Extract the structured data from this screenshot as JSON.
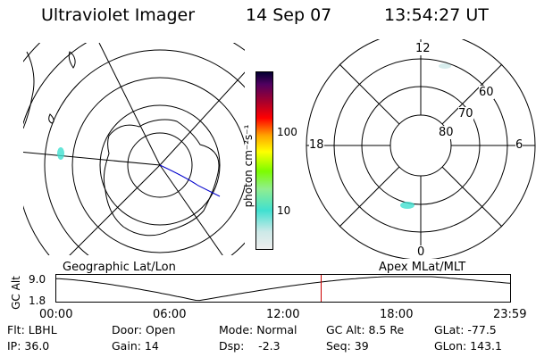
{
  "header": {
    "instrument": "Ultraviolet Imager",
    "date": "14 Sep 07",
    "time": "13:54:27 UT"
  },
  "colorbar": {
    "unit_label": "photon cm⁻²s⁻¹",
    "tick_labels": [
      "100",
      "10"
    ],
    "colors": [
      "#e8e8e8",
      "#bfeee8",
      "#40e0d0",
      "#7cfc00",
      "#ffff00",
      "#ffa500",
      "#ff0000",
      "#b00000",
      "#5a0050",
      "#000030"
    ]
  },
  "geo_map": {
    "label": "Geographic Lat/Lon",
    "ring_color": "#000000",
    "coast_color": "#000000",
    "track_color": "#0000cc"
  },
  "polar_map": {
    "label": "Apex MLat/MLT",
    "mlt_labels": {
      "top": "12",
      "left": "18",
      "right": "6",
      "bottom": "0"
    },
    "mlat_labels": [
      "60",
      "70",
      "80"
    ]
  },
  "altitude_plot": {
    "axis_title": "GC Alt",
    "y_ticks": [
      "9.0",
      "1.8"
    ],
    "x_ticks": [
      "00:00",
      "06:00",
      "12:00",
      "18:00",
      "23:59"
    ],
    "current_time_marker": 14.0,
    "marker_color": "#cc0000"
  },
  "status": {
    "row1": [
      {
        "key": "flt",
        "text": "Flt: LBHL"
      },
      {
        "key": "door",
        "text": "Door: Open"
      },
      {
        "key": "mode",
        "text": "Mode: Normal"
      },
      {
        "key": "gcalt",
        "text": "GC Alt: 8.5 Re"
      },
      {
        "key": "glat",
        "text": "GLat: -77.5"
      }
    ],
    "row2": [
      {
        "key": "ip",
        "text": "IP: 36.0"
      },
      {
        "key": "gain",
        "text": "Gain: 14"
      },
      {
        "key": "dsp",
        "text": "Dsp:    -2.3"
      },
      {
        "key": "seq",
        "text": "Seq: 39"
      },
      {
        "key": "glon",
        "text": "GLon: 143.1"
      }
    ]
  }
}
